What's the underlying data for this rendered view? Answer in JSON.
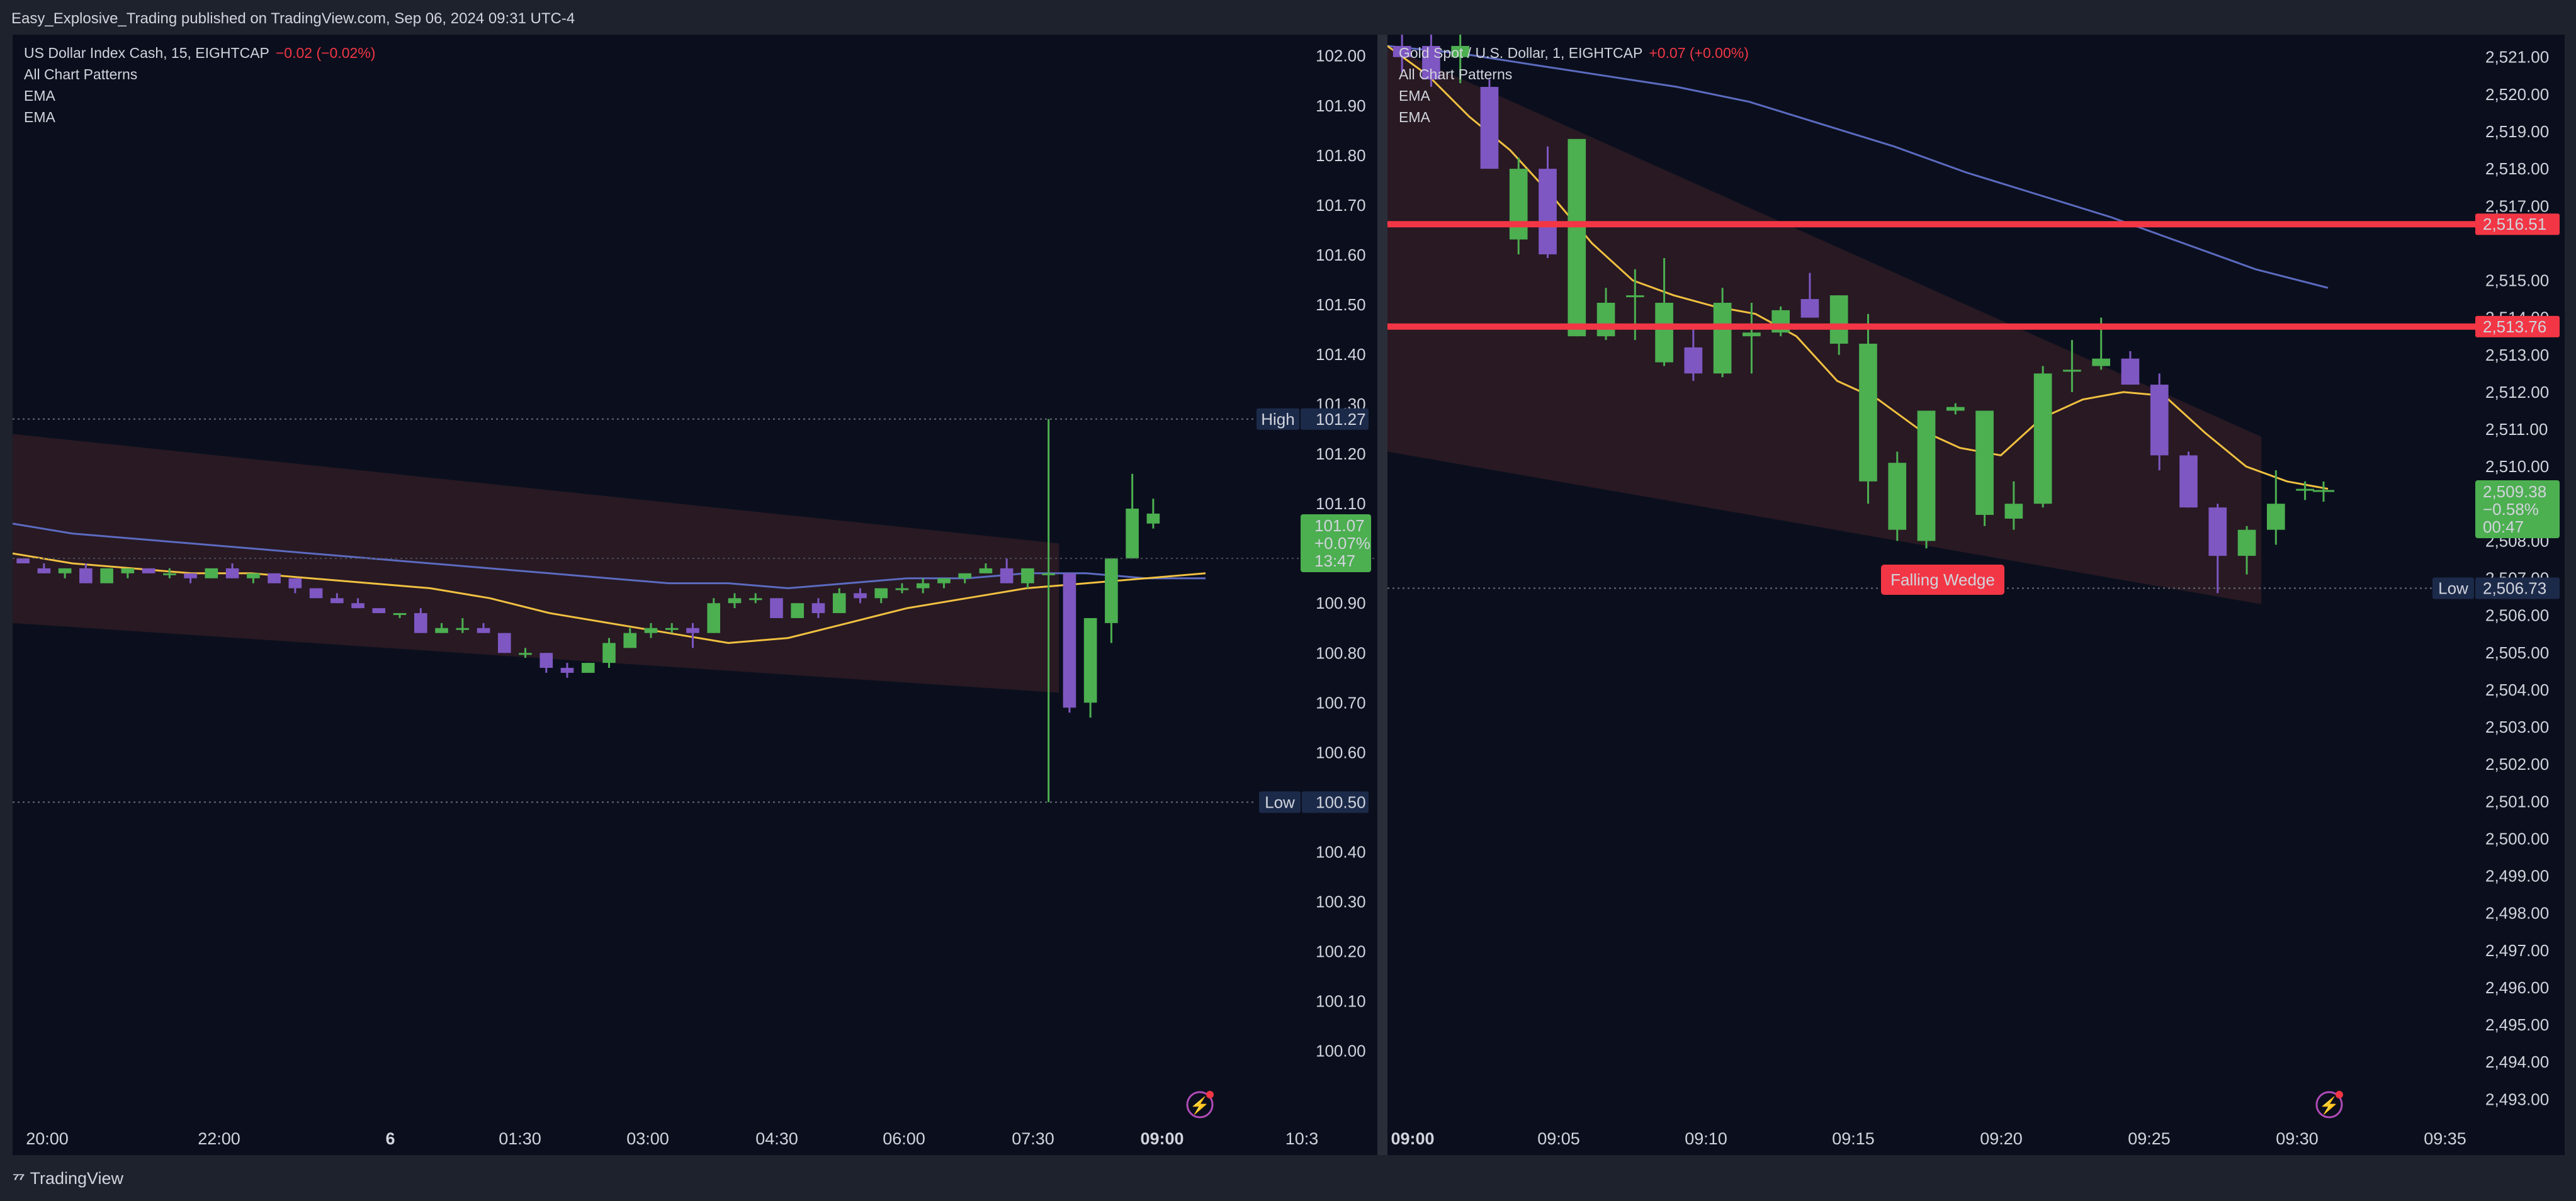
{
  "header": {
    "publish_line": "Easy_Explosive_Trading published on TradingView.com, Sep 06, 2024 09:31 UTC-4"
  },
  "footer": {
    "brand": "TradingView"
  },
  "colors": {
    "bull": "#4caf50",
    "bear": "#7e57c2",
    "ema_fast": "#f0c040",
    "ema_slow": "#5c6bc0",
    "pattern": "#2a1a24",
    "level_line": "#f23645",
    "bg": "#0b0f1d"
  },
  "left": {
    "symbol": "US Dollar Index Cash, 15, EIGHTCAP",
    "change": "−0.02 (−0.02%)",
    "indicators": [
      "All Chart Patterns",
      "EMA",
      "EMA"
    ],
    "y_ticks": [
      "102.00",
      "101.90",
      "101.80",
      "101.70",
      "101.60",
      "101.50",
      "101.40",
      "101.30",
      "101.20",
      "101.10",
      "100.90",
      "100.80",
      "100.70",
      "100.60",
      "100.50",
      "100.40",
      "100.30",
      "100.20",
      "100.10",
      "100.00"
    ],
    "x_ticks": [
      "20:00",
      "22:00",
      "6",
      "01:30",
      "03:00",
      "04:30",
      "06:00",
      "07:30",
      "09:00",
      "10:3"
    ],
    "high_tag": "High",
    "high_value": "101.27",
    "low_tag": "Low",
    "low_value": "100.50",
    "price_box": [
      "101.07",
      "+0.07%",
      "13:47"
    ],
    "icon": "lightning-icon"
  },
  "right": {
    "symbol": "Gold Spot / U.S. Dollar, 1, EIGHTCAP",
    "change": "+0.07 (+0.00%)",
    "indicators": [
      "All Chart Patterns",
      "EMA",
      "EMA"
    ],
    "y_ticks": [
      "2,521.00",
      "2,520.00",
      "2,519.00",
      "2,518.00",
      "2,517.00",
      "2,515.00",
      "2,514.00",
      "2,513.00",
      "2,512.00",
      "2,511.00",
      "2,510.00",
      "2,508.00",
      "2,507.00",
      "2,506.00",
      "2,505.00",
      "2,504.00",
      "2,503.00",
      "2,502.00",
      "2,501.00",
      "2,500.00",
      "2,499.00",
      "2,498.00",
      "2,497.00",
      "2,496.00",
      "2,495.00",
      "2,494.00",
      "2,493.00"
    ],
    "x_ticks": [
      "09:00",
      "09:05",
      "09:10",
      "09:15",
      "09:20",
      "09:25",
      "09:30",
      "09:35"
    ],
    "level1": "2,516.51",
    "level2": "2,513.76",
    "low_tag": "Low",
    "low_value": "2,506.73",
    "price_box": [
      "2,509.38",
      "−0.58%",
      "00:47"
    ],
    "pattern_label": "Falling Wedge",
    "icon": "lightning-icon"
  },
  "chart_data": [
    {
      "type": "candlestick",
      "title": "US Dollar Index Cash, 15, EIGHTCAP",
      "ylim": [
        99.93,
        102.03
      ],
      "x_labels": [
        "20:00",
        "22:00",
        "6",
        "01:30",
        "03:00",
        "04:30",
        "06:00",
        "07:30",
        "09:00",
        "10:3"
      ],
      "candles": [
        {
          "o": 100.99,
          "h": 100.99,
          "l": 100.98,
          "c": 100.98
        },
        {
          "o": 100.97,
          "h": 100.98,
          "l": 100.96,
          "c": 100.96
        },
        {
          "o": 100.96,
          "h": 100.97,
          "l": 100.95,
          "c": 100.97
        },
        {
          "o": 100.97,
          "h": 100.98,
          "l": 100.94,
          "c": 100.94
        },
        {
          "o": 100.94,
          "h": 100.97,
          "l": 100.94,
          "c": 100.97
        },
        {
          "o": 100.96,
          "h": 100.97,
          "l": 100.95,
          "c": 100.97
        },
        {
          "o": 100.97,
          "h": 100.97,
          "l": 100.96,
          "c": 100.96
        },
        {
          "o": 100.96,
          "h": 100.97,
          "l": 100.95,
          "c": 100.96
        },
        {
          "o": 100.96,
          "h": 100.96,
          "l": 100.94,
          "c": 100.95
        },
        {
          "o": 100.95,
          "h": 100.97,
          "l": 100.95,
          "c": 100.97
        },
        {
          "o": 100.97,
          "h": 100.98,
          "l": 100.95,
          "c": 100.95
        },
        {
          "o": 100.95,
          "h": 100.96,
          "l": 100.94,
          "c": 100.96
        },
        {
          "o": 100.96,
          "h": 100.96,
          "l": 100.94,
          "c": 100.94
        },
        {
          "o": 100.95,
          "h": 100.95,
          "l": 100.92,
          "c": 100.93
        },
        {
          "o": 100.93,
          "h": 100.93,
          "l": 100.91,
          "c": 100.91
        },
        {
          "o": 100.91,
          "h": 100.92,
          "l": 100.9,
          "c": 100.9
        },
        {
          "o": 100.9,
          "h": 100.91,
          "l": 100.89,
          "c": 100.89
        },
        {
          "o": 100.89,
          "h": 100.89,
          "l": 100.88,
          "c": 100.88
        },
        {
          "o": 100.88,
          "h": 100.88,
          "l": 100.87,
          "c": 100.88
        },
        {
          "o": 100.88,
          "h": 100.89,
          "l": 100.84,
          "c": 100.84
        },
        {
          "o": 100.84,
          "h": 100.86,
          "l": 100.84,
          "c": 100.85
        },
        {
          "o": 100.85,
          "h": 100.87,
          "l": 100.84,
          "c": 100.85
        },
        {
          "o": 100.85,
          "h": 100.86,
          "l": 100.84,
          "c": 100.84
        },
        {
          "o": 100.84,
          "h": 100.84,
          "l": 100.8,
          "c": 100.8
        },
        {
          "o": 100.8,
          "h": 100.81,
          "l": 100.79,
          "c": 100.8
        },
        {
          "o": 100.8,
          "h": 100.8,
          "l": 100.76,
          "c": 100.77
        },
        {
          "o": 100.77,
          "h": 100.78,
          "l": 100.75,
          "c": 100.76
        },
        {
          "o": 100.76,
          "h": 100.78,
          "l": 100.76,
          "c": 100.78
        },
        {
          "o": 100.78,
          "h": 100.83,
          "l": 100.77,
          "c": 100.82
        },
        {
          "o": 100.81,
          "h": 100.85,
          "l": 100.81,
          "c": 100.84
        },
        {
          "o": 100.84,
          "h": 100.86,
          "l": 100.83,
          "c": 100.85
        },
        {
          "o": 100.85,
          "h": 100.86,
          "l": 100.84,
          "c": 100.85
        },
        {
          "o": 100.85,
          "h": 100.86,
          "l": 100.81,
          "c": 100.84
        },
        {
          "o": 100.84,
          "h": 100.91,
          "l": 100.84,
          "c": 100.9
        },
        {
          "o": 100.9,
          "h": 100.92,
          "l": 100.89,
          "c": 100.91
        },
        {
          "o": 100.91,
          "h": 100.92,
          "l": 100.9,
          "c": 100.91
        },
        {
          "o": 100.91,
          "h": 100.91,
          "l": 100.87,
          "c": 100.87
        },
        {
          "o": 100.87,
          "h": 100.9,
          "l": 100.87,
          "c": 100.9
        },
        {
          "o": 100.9,
          "h": 100.91,
          "l": 100.87,
          "c": 100.88
        },
        {
          "o": 100.88,
          "h": 100.93,
          "l": 100.88,
          "c": 100.92
        },
        {
          "o": 100.92,
          "h": 100.93,
          "l": 100.9,
          "c": 100.91
        },
        {
          "o": 100.91,
          "h": 100.93,
          "l": 100.9,
          "c": 100.93
        },
        {
          "o": 100.93,
          "h": 100.94,
          "l": 100.92,
          "c": 100.93
        },
        {
          "o": 100.93,
          "h": 100.95,
          "l": 100.92,
          "c": 100.94
        },
        {
          "o": 100.94,
          "h": 100.95,
          "l": 100.93,
          "c": 100.95
        },
        {
          "o": 100.95,
          "h": 100.96,
          "l": 100.94,
          "c": 100.96
        },
        {
          "o": 100.96,
          "h": 100.98,
          "l": 100.96,
          "c": 100.97
        },
        {
          "o": 100.97,
          "h": 100.99,
          "l": 100.94,
          "c": 100.94
        },
        {
          "o": 100.94,
          "h": 100.97,
          "l": 100.93,
          "c": 100.97
        },
        {
          "o": 100.96,
          "h": 101.27,
          "l": 100.5,
          "c": 100.96
        },
        {
          "o": 100.96,
          "h": 100.96,
          "l": 100.68,
          "c": 100.69
        },
        {
          "o": 100.7,
          "h": 100.87,
          "l": 100.67,
          "c": 100.87
        },
        {
          "o": 100.86,
          "h": 100.99,
          "l": 100.82,
          "c": 100.99
        },
        {
          "o": 100.99,
          "h": 101.16,
          "l": 100.99,
          "c": 101.09
        },
        {
          "o": 101.06,
          "h": 101.11,
          "l": 101.05,
          "c": 101.08
        }
      ],
      "ema_fast": [
        101.0,
        100.98,
        100.97,
        100.96,
        100.96,
        100.95,
        100.94,
        100.93,
        100.91,
        100.88,
        100.86,
        100.84,
        100.82,
        100.83,
        100.86,
        100.89,
        100.91,
        100.93,
        100.94,
        100.95,
        100.96
      ],
      "ema_slow": [
        101.06,
        101.04,
        101.03,
        101.02,
        101.01,
        101.0,
        100.99,
        100.98,
        100.97,
        100.96,
        100.95,
        100.94,
        100.94,
        100.93,
        100.94,
        100.95,
        100.95,
        100.96,
        100.96,
        100.95,
        100.95
      ],
      "pattern_zone": {
        "x_from": 0,
        "x_to": 49,
        "top": [
          101.24,
          101.02
        ],
        "bottom": [
          100.86,
          100.72
        ]
      }
    },
    {
      "type": "candlestick",
      "title": "Gold Spot / U.S. Dollar, 1, EIGHTCAP",
      "ylim": [
        2492.6,
        2521.3
      ],
      "x_labels": [
        "09:00",
        "09:05",
        "09:10",
        "09:15",
        "09:20",
        "09:25",
        "09:30",
        "09:35"
      ],
      "candles": [
        {
          "o": 2521.3,
          "h": 2521.8,
          "l": 2520.6,
          "c": 2521.0
        },
        {
          "o": 2521.3,
          "h": 2521.8,
          "l": 2520.2,
          "c": 2520.4
        },
        {
          "o": 2521.0,
          "h": 2521.7,
          "l": 2520.3,
          "c": 2521.3
        },
        {
          "o": 2520.2,
          "h": 2520.4,
          "l": 2518.0,
          "c": 2518.0
        },
        {
          "o": 2516.1,
          "h": 2518.3,
          "l": 2515.7,
          "c": 2518.0
        },
        {
          "o": 2518.0,
          "h": 2518.6,
          "l": 2515.6,
          "c": 2515.7
        },
        {
          "o": 2513.5,
          "h": 2518.8,
          "l": 2513.5,
          "c": 2518.8
        },
        {
          "o": 2513.5,
          "h": 2514.8,
          "l": 2513.4,
          "c": 2514.4
        },
        {
          "o": 2514.6,
          "h": 2515.3,
          "l": 2513.4,
          "c": 2514.6
        },
        {
          "o": 2512.8,
          "h": 2515.6,
          "l": 2512.7,
          "c": 2514.4
        },
        {
          "o": 2513.2,
          "h": 2513.7,
          "l": 2512.3,
          "c": 2512.5
        },
        {
          "o": 2512.5,
          "h": 2514.8,
          "l": 2512.4,
          "c": 2514.4
        },
        {
          "o": 2513.5,
          "h": 2514.4,
          "l": 2512.5,
          "c": 2513.6
        },
        {
          "o": 2513.6,
          "h": 2514.3,
          "l": 2513.5,
          "c": 2514.2
        },
        {
          "o": 2514.5,
          "h": 2515.2,
          "l": 2514.0,
          "c": 2514.0
        },
        {
          "o": 2513.3,
          "h": 2514.6,
          "l": 2513.0,
          "c": 2514.6
        },
        {
          "o": 2509.6,
          "h": 2514.1,
          "l": 2509.0,
          "c": 2513.3
        },
        {
          "o": 2508.3,
          "h": 2510.4,
          "l": 2508.0,
          "c": 2510.1
        },
        {
          "o": 2508.0,
          "h": 2511.5,
          "l": 2507.8,
          "c": 2511.5
        },
        {
          "o": 2511.5,
          "h": 2511.7,
          "l": 2511.4,
          "c": 2511.6
        },
        {
          "o": 2508.7,
          "h": 2511.5,
          "l": 2508.4,
          "c": 2511.5
        },
        {
          "o": 2508.6,
          "h": 2509.6,
          "l": 2508.3,
          "c": 2509.0
        },
        {
          "o": 2509.0,
          "h": 2512.7,
          "l": 2508.9,
          "c": 2512.5
        },
        {
          "o": 2512.6,
          "h": 2513.4,
          "l": 2512.0,
          "c": 2512.6
        },
        {
          "o": 2512.7,
          "h": 2514.0,
          "l": 2512.6,
          "c": 2512.9
        },
        {
          "o": 2512.9,
          "h": 2513.1,
          "l": 2512.2,
          "c": 2512.2
        },
        {
          "o": 2512.2,
          "h": 2512.5,
          "l": 2509.9,
          "c": 2510.3
        },
        {
          "o": 2510.3,
          "h": 2510.4,
          "l": 2508.9,
          "c": 2508.9
        },
        {
          "o": 2508.9,
          "h": 2509.0,
          "l": 2506.6,
          "c": 2507.6
        },
        {
          "o": 2507.6,
          "h": 2508.4,
          "l": 2507.1,
          "c": 2508.3
        },
        {
          "o": 2508.3,
          "h": 2509.9,
          "l": 2507.9,
          "c": 2509.0
        },
        {
          "o": 2509.4,
          "h": 2509.6,
          "l": 2509.1,
          "c": 2509.4
        }
      ],
      "ema_fast": [
        2521.3,
        2520.5,
        2519.4,
        2518.5,
        2517.3,
        2516.0,
        2515.0,
        2514.6,
        2514.3,
        2514.1,
        2513.5,
        2512.3,
        2511.8,
        2511.0,
        2510.5,
        2510.3,
        2511.3,
        2511.8,
        2512.0,
        2511.9,
        2510.9,
        2510.0,
        2509.6,
        2509.4
      ],
      "ema_slow": [
        2521.3,
        2521.1,
        2520.8,
        2520.5,
        2520.2,
        2519.8,
        2519.2,
        2518.6,
        2517.9,
        2517.3,
        2516.7,
        2516.0,
        2515.3,
        2514.8
      ],
      "levels": [
        2516.51,
        2513.76
      ],
      "low": 2506.73,
      "pattern_zone": {
        "x_from": 0,
        "x_to": 29,
        "top": [
          2521.3,
          2510.8
        ],
        "bottom": [
          2510.4,
          2506.3
        ]
      }
    }
  ]
}
